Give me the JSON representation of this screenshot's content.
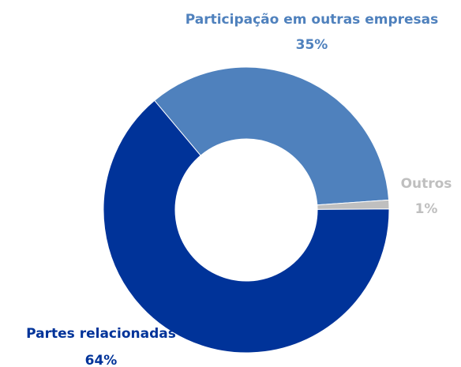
{
  "chart_data": {
    "type": "donut",
    "categories": [
      "Participação em outras empresas",
      "Outros",
      "Partes relacionadas"
    ],
    "values": [
      35,
      1,
      64
    ],
    "value_labels": [
      "35%",
      "1%",
      "64%"
    ],
    "colors": [
      "#4f81bd",
      "#bfbfbf",
      "#003399"
    ]
  }
}
